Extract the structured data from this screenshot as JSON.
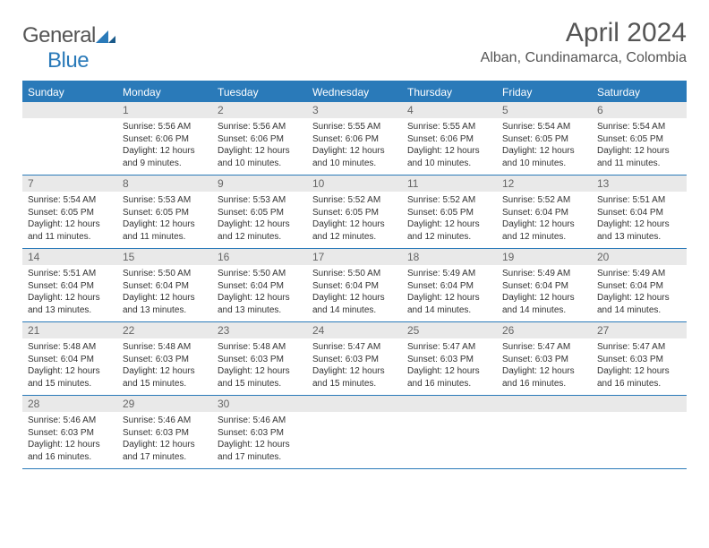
{
  "logo": {
    "text_gray": "General",
    "text_blue": "Blue"
  },
  "title": "April 2024",
  "location": "Alban, Cundinamarca, Colombia",
  "colors": {
    "header_bar": "#2a7ab9",
    "daynum_bg": "#e9e9e9",
    "text_gray": "#555555",
    "text_dark": "#333333"
  },
  "days_of_week": [
    "Sunday",
    "Monday",
    "Tuesday",
    "Wednesday",
    "Thursday",
    "Friday",
    "Saturday"
  ],
  "weeks": [
    [
      {
        "n": "",
        "lines": []
      },
      {
        "n": "1",
        "lines": [
          "Sunrise: 5:56 AM",
          "Sunset: 6:06 PM",
          "Daylight: 12 hours",
          "and 9 minutes."
        ]
      },
      {
        "n": "2",
        "lines": [
          "Sunrise: 5:56 AM",
          "Sunset: 6:06 PM",
          "Daylight: 12 hours",
          "and 10 minutes."
        ]
      },
      {
        "n": "3",
        "lines": [
          "Sunrise: 5:55 AM",
          "Sunset: 6:06 PM",
          "Daylight: 12 hours",
          "and 10 minutes."
        ]
      },
      {
        "n": "4",
        "lines": [
          "Sunrise: 5:55 AM",
          "Sunset: 6:06 PM",
          "Daylight: 12 hours",
          "and 10 minutes."
        ]
      },
      {
        "n": "5",
        "lines": [
          "Sunrise: 5:54 AM",
          "Sunset: 6:05 PM",
          "Daylight: 12 hours",
          "and 10 minutes."
        ]
      },
      {
        "n": "6",
        "lines": [
          "Sunrise: 5:54 AM",
          "Sunset: 6:05 PM",
          "Daylight: 12 hours",
          "and 11 minutes."
        ]
      }
    ],
    [
      {
        "n": "7",
        "lines": [
          "Sunrise: 5:54 AM",
          "Sunset: 6:05 PM",
          "Daylight: 12 hours",
          "and 11 minutes."
        ]
      },
      {
        "n": "8",
        "lines": [
          "Sunrise: 5:53 AM",
          "Sunset: 6:05 PM",
          "Daylight: 12 hours",
          "and 11 minutes."
        ]
      },
      {
        "n": "9",
        "lines": [
          "Sunrise: 5:53 AM",
          "Sunset: 6:05 PM",
          "Daylight: 12 hours",
          "and 12 minutes."
        ]
      },
      {
        "n": "10",
        "lines": [
          "Sunrise: 5:52 AM",
          "Sunset: 6:05 PM",
          "Daylight: 12 hours",
          "and 12 minutes."
        ]
      },
      {
        "n": "11",
        "lines": [
          "Sunrise: 5:52 AM",
          "Sunset: 6:05 PM",
          "Daylight: 12 hours",
          "and 12 minutes."
        ]
      },
      {
        "n": "12",
        "lines": [
          "Sunrise: 5:52 AM",
          "Sunset: 6:04 PM",
          "Daylight: 12 hours",
          "and 12 minutes."
        ]
      },
      {
        "n": "13",
        "lines": [
          "Sunrise: 5:51 AM",
          "Sunset: 6:04 PM",
          "Daylight: 12 hours",
          "and 13 minutes."
        ]
      }
    ],
    [
      {
        "n": "14",
        "lines": [
          "Sunrise: 5:51 AM",
          "Sunset: 6:04 PM",
          "Daylight: 12 hours",
          "and 13 minutes."
        ]
      },
      {
        "n": "15",
        "lines": [
          "Sunrise: 5:50 AM",
          "Sunset: 6:04 PM",
          "Daylight: 12 hours",
          "and 13 minutes."
        ]
      },
      {
        "n": "16",
        "lines": [
          "Sunrise: 5:50 AM",
          "Sunset: 6:04 PM",
          "Daylight: 12 hours",
          "and 13 minutes."
        ]
      },
      {
        "n": "17",
        "lines": [
          "Sunrise: 5:50 AM",
          "Sunset: 6:04 PM",
          "Daylight: 12 hours",
          "and 14 minutes."
        ]
      },
      {
        "n": "18",
        "lines": [
          "Sunrise: 5:49 AM",
          "Sunset: 6:04 PM",
          "Daylight: 12 hours",
          "and 14 minutes."
        ]
      },
      {
        "n": "19",
        "lines": [
          "Sunrise: 5:49 AM",
          "Sunset: 6:04 PM",
          "Daylight: 12 hours",
          "and 14 minutes."
        ]
      },
      {
        "n": "20",
        "lines": [
          "Sunrise: 5:49 AM",
          "Sunset: 6:04 PM",
          "Daylight: 12 hours",
          "and 14 minutes."
        ]
      }
    ],
    [
      {
        "n": "21",
        "lines": [
          "Sunrise: 5:48 AM",
          "Sunset: 6:04 PM",
          "Daylight: 12 hours",
          "and 15 minutes."
        ]
      },
      {
        "n": "22",
        "lines": [
          "Sunrise: 5:48 AM",
          "Sunset: 6:03 PM",
          "Daylight: 12 hours",
          "and 15 minutes."
        ]
      },
      {
        "n": "23",
        "lines": [
          "Sunrise: 5:48 AM",
          "Sunset: 6:03 PM",
          "Daylight: 12 hours",
          "and 15 minutes."
        ]
      },
      {
        "n": "24",
        "lines": [
          "Sunrise: 5:47 AM",
          "Sunset: 6:03 PM",
          "Daylight: 12 hours",
          "and 15 minutes."
        ]
      },
      {
        "n": "25",
        "lines": [
          "Sunrise: 5:47 AM",
          "Sunset: 6:03 PM",
          "Daylight: 12 hours",
          "and 16 minutes."
        ]
      },
      {
        "n": "26",
        "lines": [
          "Sunrise: 5:47 AM",
          "Sunset: 6:03 PM",
          "Daylight: 12 hours",
          "and 16 minutes."
        ]
      },
      {
        "n": "27",
        "lines": [
          "Sunrise: 5:47 AM",
          "Sunset: 6:03 PM",
          "Daylight: 12 hours",
          "and 16 minutes."
        ]
      }
    ],
    [
      {
        "n": "28",
        "lines": [
          "Sunrise: 5:46 AM",
          "Sunset: 6:03 PM",
          "Daylight: 12 hours",
          "and 16 minutes."
        ]
      },
      {
        "n": "29",
        "lines": [
          "Sunrise: 5:46 AM",
          "Sunset: 6:03 PM",
          "Daylight: 12 hours",
          "and 17 minutes."
        ]
      },
      {
        "n": "30",
        "lines": [
          "Sunrise: 5:46 AM",
          "Sunset: 6:03 PM",
          "Daylight: 12 hours",
          "and 17 minutes."
        ]
      },
      {
        "n": "",
        "lines": []
      },
      {
        "n": "",
        "lines": []
      },
      {
        "n": "",
        "lines": []
      },
      {
        "n": "",
        "lines": []
      }
    ]
  ]
}
